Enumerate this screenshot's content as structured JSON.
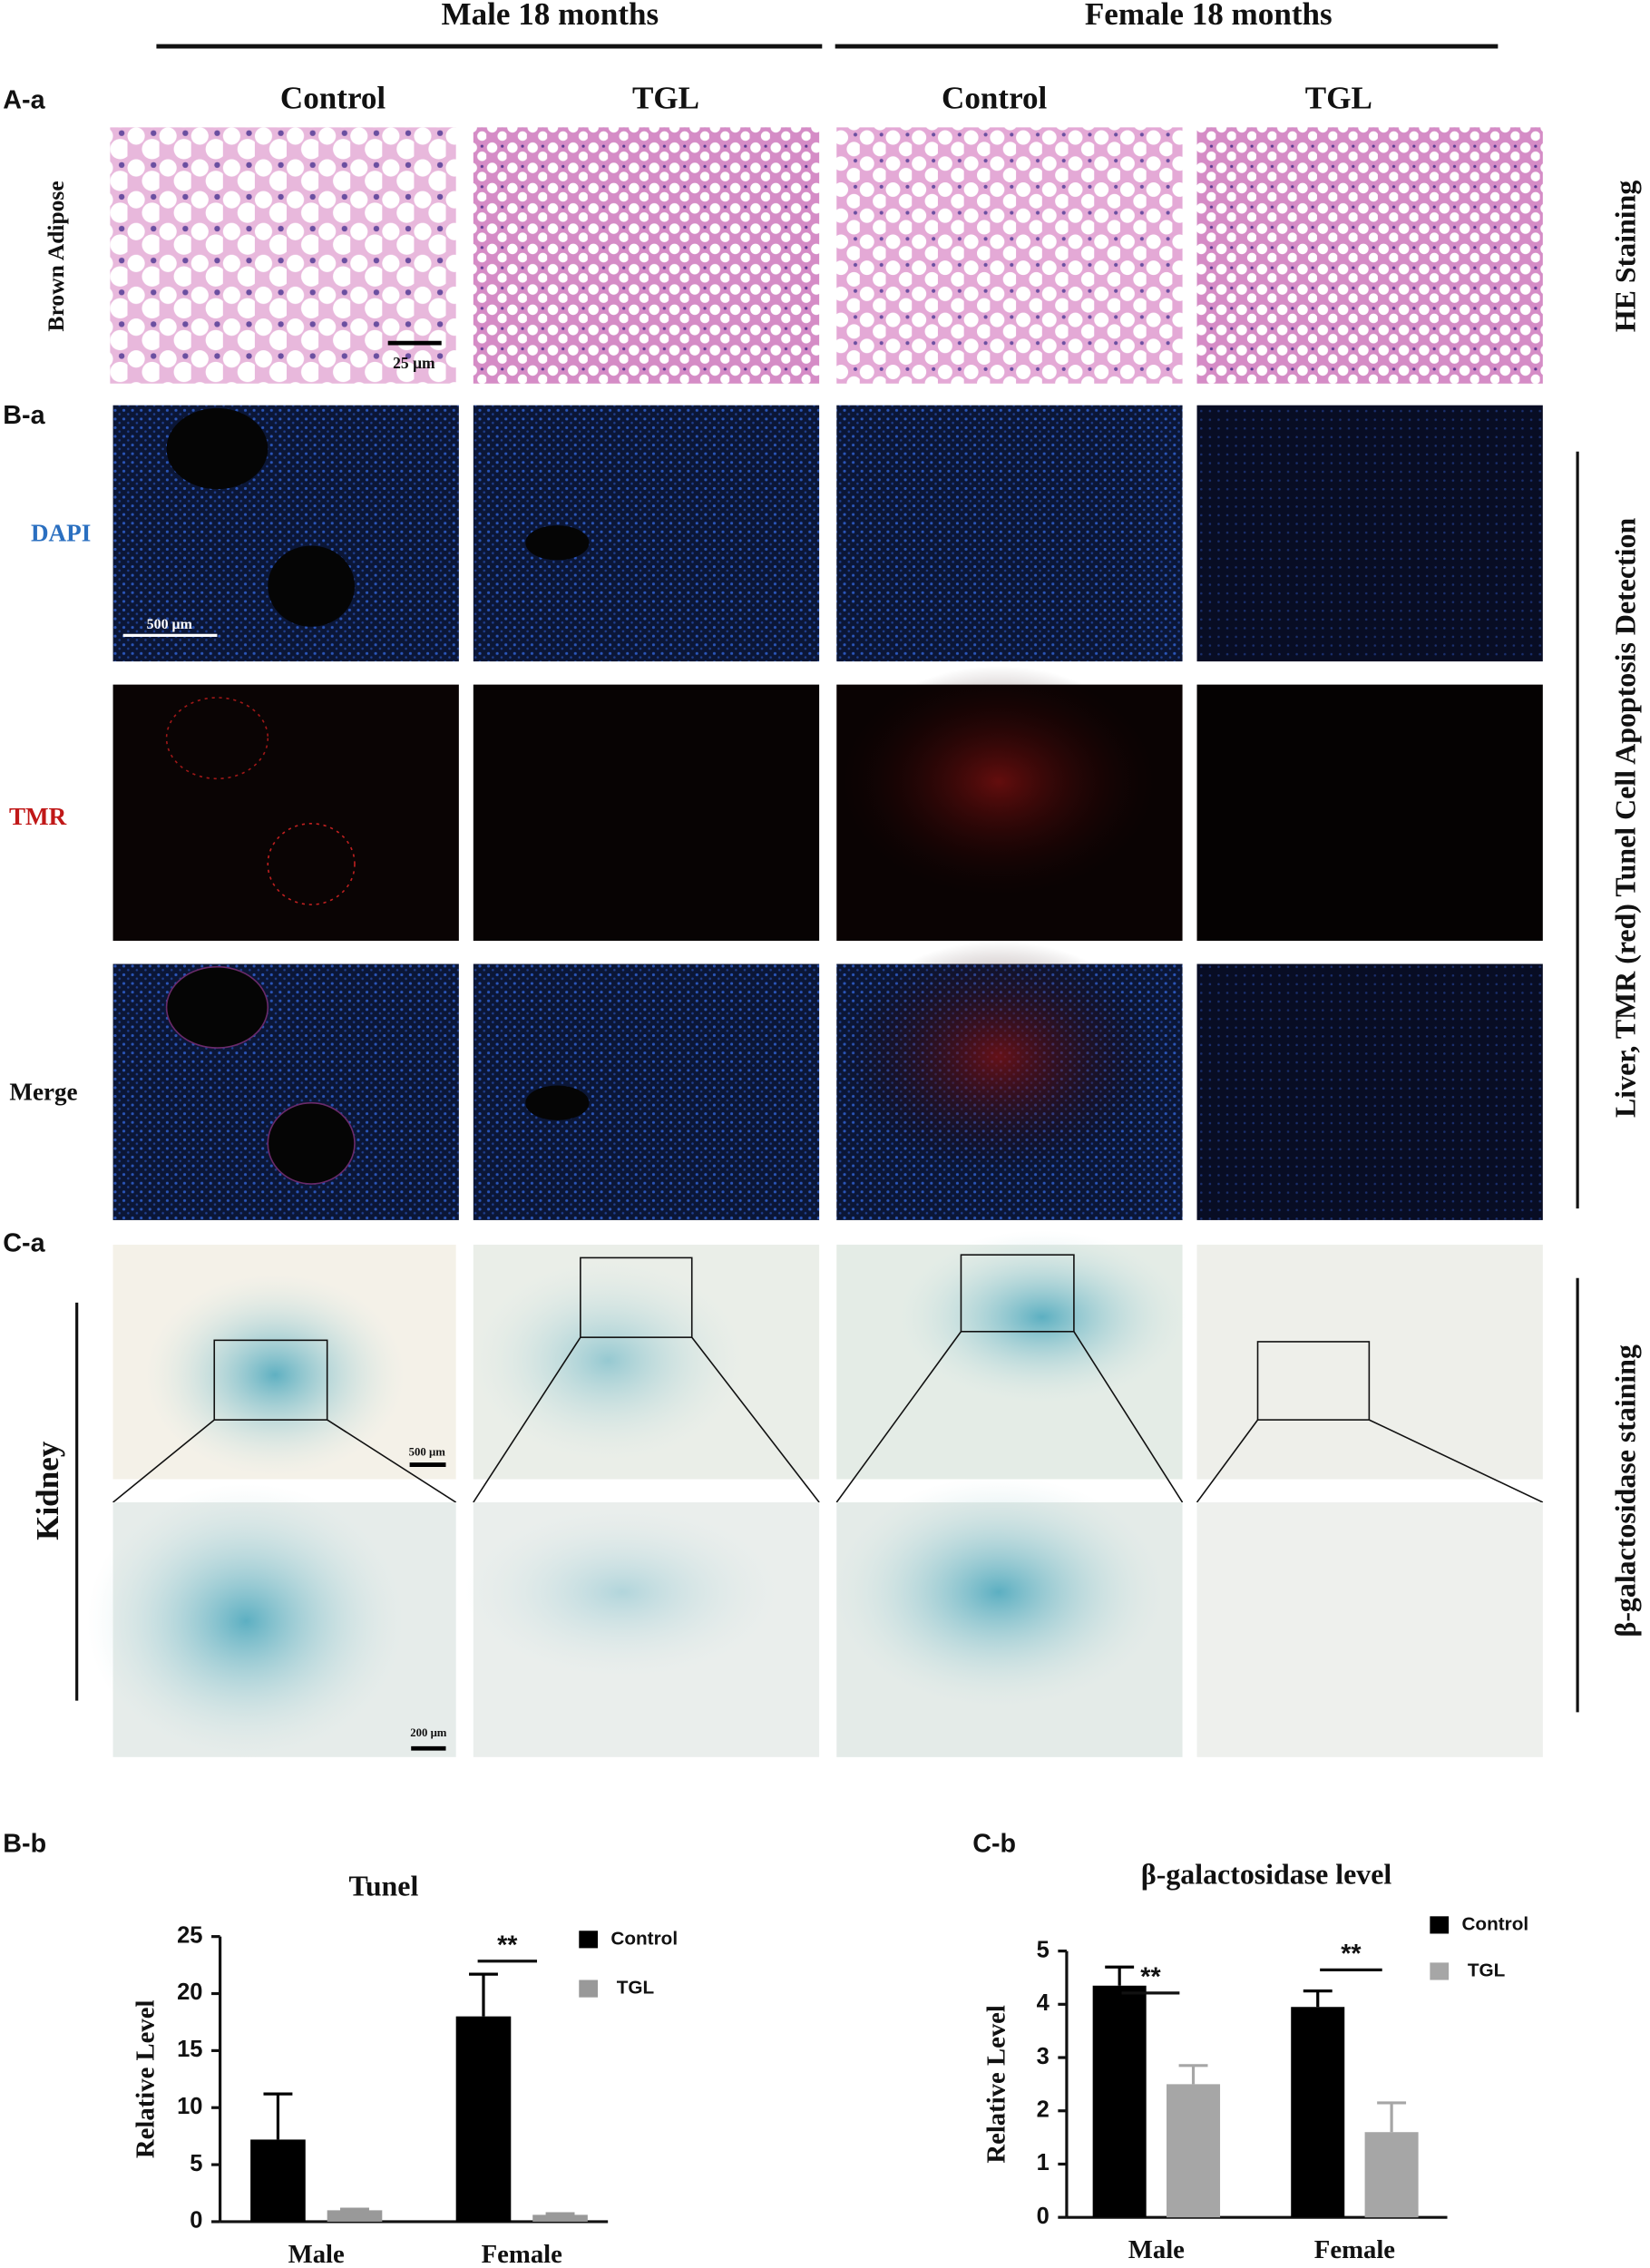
{
  "header": {
    "groups": [
      "Male  18 months",
      "Female   18 months"
    ],
    "columns": [
      "Control",
      "TGL",
      "Control",
      "TGL"
    ]
  },
  "panel_labels": [
    "A-a",
    "B-a",
    "C-a",
    "B-b",
    "C-b"
  ],
  "row_labels": [
    "Brown Adipose",
    "DAPI",
    "TMR",
    "Merge",
    "Kidney"
  ],
  "side_labels": [
    "HE  Staining",
    "Liver, TMR (red) Tunel Cell Apoptosis Detection",
    "β-galactosidase staining"
  ],
  "scale_bars": [
    "25 μm",
    "500 μm",
    "500 μm",
    "200 μm"
  ],
  "chart_data": [
    {
      "type": "bar",
      "title": "Tunel",
      "ylabel": "Relative Level",
      "categories": [
        "Male",
        "Female"
      ],
      "series": [
        {
          "name": "Control",
          "color": "#000000",
          "values": [
            7.2,
            18
          ],
          "errors": [
            4.0,
            3.7
          ]
        },
        {
          "name": "TGL",
          "color": "#999999",
          "values": [
            1.0,
            0.6
          ],
          "errors": [
            0.1,
            0.1
          ]
        }
      ],
      "ylim": [
        0,
        25
      ],
      "yticks": [
        0,
        5,
        10,
        15,
        20,
        25
      ],
      "annotations": [
        "**"
      ]
    },
    {
      "type": "bar",
      "title": "β-galactosidase level",
      "ylabel": "Relative Level",
      "categories": [
        "Male",
        "Female"
      ],
      "series": [
        {
          "name": "Control",
          "color": "#000000",
          "values": [
            4.35,
            3.95
          ],
          "errors": [
            0.35,
            0.3
          ]
        },
        {
          "name": "TGL",
          "color": "#a6a6a6",
          "values": [
            2.5,
            1.6
          ],
          "errors": [
            0.35,
            0.55
          ]
        }
      ],
      "ylim": [
        0,
        5
      ],
      "yticks": [
        0,
        1,
        2,
        3,
        4,
        5
      ],
      "annotations": [
        "**",
        "**"
      ]
    }
  ]
}
